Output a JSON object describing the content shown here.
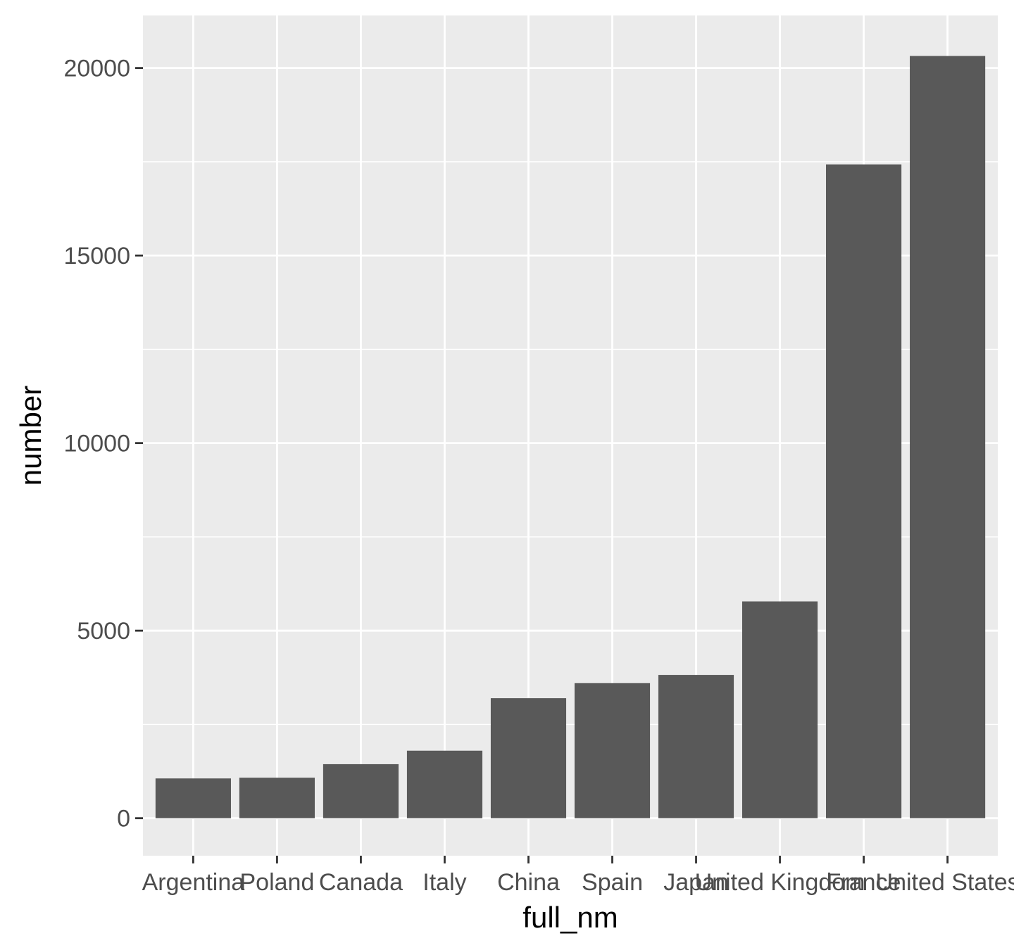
{
  "chart_data": {
    "type": "bar",
    "title": "",
    "xlabel": "full_nm",
    "ylabel": "number",
    "categories": [
      "Argentina",
      "Poland",
      "Canada",
      "Italy",
      "China",
      "Spain",
      "Japan",
      "United Kingdom",
      "France",
      "United States"
    ],
    "values": [
      1060,
      1080,
      1440,
      1800,
      3200,
      3600,
      3820,
      5780,
      17430,
      20320
    ],
    "ylim": [
      -1000,
      21400
    ],
    "yticks": [
      0,
      5000,
      10000,
      15000,
      20000
    ],
    "ytick_labels": [
      "0",
      "5000",
      "10000",
      "15000",
      "20000"
    ],
    "grid": true,
    "legend": "none",
    "colors": {
      "bar": "#595959",
      "panel": "#ebebeb",
      "grid": "#ffffff"
    }
  }
}
